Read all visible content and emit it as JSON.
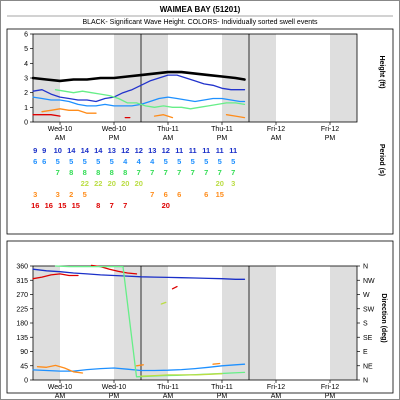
{
  "title": "WAIMEA BAY (51201)",
  "subtitle": "BLACK- Significant Wave Height.  COLORS- Individually sorted swell events",
  "chart_data": [
    {
      "type": "line",
      "ylabel": "Height (ft)",
      "ylim": [
        0,
        6
      ],
      "yticks": [
        "0",
        "1",
        "2",
        "3",
        "4",
        "5",
        "6"
      ],
      "x_groups": [
        {
          "day": "Wed-10",
          "half": "AM"
        },
        {
          "day": "Wed-10",
          "half": "PM"
        },
        {
          "day": "Thu-11",
          "half": "AM"
        },
        {
          "day": "Thu-11",
          "half": "PM"
        },
        {
          "day": "Fri-12",
          "half": "AM"
        },
        {
          "day": "Fri-12",
          "half": "PM"
        }
      ],
      "x_unit": "hours since Wed-10 00:00",
      "xlim": [
        0,
        72
      ],
      "series": [
        {
          "color": "#000000",
          "x": [
            0,
            3,
            6,
            9,
            12,
            15,
            18,
            21,
            24,
            27,
            30,
            33,
            36,
            39,
            42,
            45,
            47
          ],
          "y": [
            3.0,
            2.9,
            2.8,
            2.9,
            2.9,
            3.0,
            3.0,
            3.1,
            3.2,
            3.3,
            3.4,
            3.4,
            3.3,
            3.2,
            3.1,
            3.0,
            2.9
          ]
        },
        {
          "color": "#2233cc",
          "x": [
            0,
            2,
            4,
            6,
            8,
            10,
            12,
            14,
            16,
            18,
            20,
            22,
            24,
            26,
            28,
            30,
            32,
            34,
            36,
            38,
            40,
            42,
            44,
            46,
            47
          ],
          "y": [
            2.1,
            2.2,
            1.9,
            1.7,
            1.6,
            1.5,
            1.5,
            1.4,
            1.6,
            1.7,
            2.0,
            2.2,
            2.5,
            2.8,
            3.0,
            3.2,
            3.2,
            3.0,
            2.8,
            2.6,
            2.5,
            2.3,
            2.2,
            2.2,
            2.2
          ]
        },
        {
          "color": "#1e90ff",
          "x": [
            0,
            2,
            4,
            6,
            8,
            10,
            12,
            14,
            16,
            18,
            20,
            22,
            24,
            26,
            28,
            30,
            32,
            34,
            36,
            38,
            40,
            42,
            44,
            46,
            47
          ],
          "y": [
            1.7,
            1.6,
            1.5,
            1.5,
            1.4,
            1.2,
            1.1,
            1.1,
            1.2,
            1.1,
            1.1,
            1.1,
            1.2,
            1.4,
            1.6,
            1.7,
            1.6,
            1.5,
            1.4,
            1.5,
            1.6,
            1.6,
            1.5,
            1.4,
            1.4
          ]
        },
        {
          "color": "#66ee88",
          "x": [
            5,
            7,
            9,
            11,
            13,
            15,
            17,
            19,
            21,
            23,
            25,
            27,
            29,
            31,
            33,
            35,
            37,
            39,
            41,
            43,
            45,
            47
          ],
          "y": [
            2.2,
            2.1,
            2.0,
            2.1,
            2.0,
            1.9,
            1.8,
            1.6,
            1.3,
            1.3,
            1.1,
            1.0,
            1.1,
            1.0,
            1.0,
            0.9,
            1.0,
            1.1,
            1.2,
            1.3,
            1.3,
            1.2
          ]
        },
        {
          "color": "#ff8c1a",
          "x": [
            2,
            4,
            6,
            8,
            10,
            12,
            14
          ],
          "y": [
            0.7,
            0.8,
            0.9,
            0.8,
            0.8,
            0.6,
            0.6
          ]
        },
        {
          "color": "#ff8c1a",
          "x": [
            27,
            29,
            31
          ],
          "y": [
            0.4,
            0.5,
            0.3
          ]
        },
        {
          "color": "#ff8c1a",
          "x": [
            43,
            45,
            47
          ],
          "y": [
            0.5,
            0.4,
            0.3
          ]
        },
        {
          "color": "#dd0000",
          "x": [
            0,
            2,
            4,
            6
          ],
          "y": [
            0.5,
            0.5,
            0.5,
            0.4
          ]
        },
        {
          "color": "#dd0000",
          "x": [
            20.5,
            21.5
          ],
          "y": [
            0.3,
            0.3
          ]
        }
      ],
      "period_label": "Period (s)",
      "period_rows": [
        {
          "color": "#1a2fc8",
          "cells": [
            [
              "0.5",
              "9"
            ],
            [
              "2.5",
              "9"
            ],
            [
              "5.5",
              "10"
            ],
            [
              "8.5",
              "14"
            ],
            [
              "11.5",
              "14"
            ],
            [
              "14.5",
              "14"
            ],
            [
              "17.5",
              "13"
            ],
            [
              "20.5",
              "12"
            ],
            [
              "23.5",
              "12"
            ],
            [
              "26.5",
              "13"
            ],
            [
              "29.5",
              "12"
            ],
            [
              "32.5",
              "11"
            ],
            [
              "35.5",
              "11"
            ],
            [
              "38.5",
              "11"
            ],
            [
              "41.5",
              "11"
            ],
            [
              "44.5",
              "11"
            ]
          ]
        },
        {
          "color": "#1e90ff",
          "cells": [
            [
              "0.5",
              "6"
            ],
            [
              "2.5",
              "6"
            ],
            [
              "5.5",
              "5"
            ],
            [
              "8.5",
              "5"
            ],
            [
              "11.5",
              "5"
            ],
            [
              "14.5",
              "5"
            ],
            [
              "17.5",
              "5"
            ],
            [
              "20.5",
              "4"
            ],
            [
              "23.5",
              "4"
            ],
            [
              "26.5",
              "4"
            ],
            [
              "29.5",
              "5"
            ],
            [
              "32.5",
              "5"
            ],
            [
              "35.5",
              "5"
            ],
            [
              "38.5",
              "5"
            ],
            [
              "41.5",
              "5"
            ],
            [
              "44.5",
              "5"
            ]
          ]
        },
        {
          "color": "#33dd55",
          "cells": [
            [
              "5.5",
              "7"
            ],
            [
              "8.5",
              "8"
            ],
            [
              "11.5",
              "8"
            ],
            [
              "14.5",
              "8"
            ],
            [
              "17.5",
              "8"
            ],
            [
              "20.5",
              "8"
            ],
            [
              "23.5",
              "7"
            ],
            [
              "26.5",
              "7"
            ],
            [
              "29.5",
              "7"
            ],
            [
              "32.5",
              "7"
            ],
            [
              "35.5",
              "7"
            ],
            [
              "38.5",
              "7"
            ],
            [
              "41.5",
              "7"
            ],
            [
              "44.5",
              "7"
            ]
          ]
        },
        {
          "color": "#bbdd44",
          "cells": [
            [
              "11.5",
              "22"
            ],
            [
              "14.5",
              "22"
            ],
            [
              "17.5",
              "20"
            ],
            [
              "20.5",
              "20"
            ],
            [
              "23.5",
              "20"
            ],
            [
              "41.5",
              "20"
            ],
            [
              "44.5",
              "3"
            ]
          ]
        },
        {
          "color": "#ff8c1a",
          "cells": [
            [
              "0.5",
              "3"
            ],
            [
              "5.5",
              "3"
            ],
            [
              "8.5",
              "2"
            ],
            [
              "11.5",
              "5"
            ],
            [
              "26.5",
              "7"
            ],
            [
              "29.5",
              "6"
            ],
            [
              "32.5",
              "6"
            ],
            [
              "38.5",
              "6"
            ],
            [
              "41.5",
              "15"
            ]
          ]
        },
        {
          "color": "#dd0000",
          "cells": [
            [
              "0.5",
              "16"
            ],
            [
              "3.5",
              "16"
            ],
            [
              "6.5",
              "15"
            ],
            [
              "9.5",
              "15"
            ],
            [
              "14.5",
              "8"
            ],
            [
              "17.5",
              "7"
            ],
            [
              "20.5",
              "7"
            ],
            [
              "29.5",
              "20"
            ]
          ]
        }
      ]
    },
    {
      "type": "scatter",
      "ylabel": "Direction (deg)",
      "ylim": [
        0,
        360
      ],
      "yticks": [
        "0",
        "45",
        "90",
        "135",
        "180",
        "225",
        "270",
        "315",
        "360"
      ],
      "compass": [
        "N",
        "NE",
        "E",
        "SE",
        "S",
        "SW",
        "W",
        "NW",
        "N"
      ],
      "xlim": [
        0,
        72
      ],
      "series": [
        {
          "color": "#1a2fc8",
          "x": [
            0,
            3,
            6,
            9,
            12,
            15,
            18,
            21,
            24,
            27,
            30,
            33,
            36,
            39,
            42,
            45,
            47
          ],
          "y": [
            350,
            345,
            342,
            338,
            335,
            332,
            330,
            328,
            326,
            325,
            324,
            323,
            322,
            321,
            320,
            318,
            318
          ]
        },
        {
          "color": "#dd0000",
          "x": [
            0,
            2,
            4,
            6,
            8,
            10
          ],
          "y": [
            320,
            325,
            332,
            335,
            330,
            330
          ]
        },
        {
          "color": "#dd0000",
          "x": [
            13,
            15,
            17,
            19,
            21,
            23
          ],
          "y": [
            362,
            358,
            350,
            343,
            338,
            335
          ]
        },
        {
          "color": "#dd0000",
          "x": [
            31,
            32
          ],
          "y": [
            288,
            295
          ]
        },
        {
          "color": "#1e90ff",
          "x": [
            0,
            3,
            6,
            9,
            12,
            15,
            18,
            21,
            24,
            27,
            30,
            33,
            36,
            39,
            42,
            45,
            47
          ],
          "y": [
            32,
            30,
            28,
            28,
            33,
            36,
            38,
            34,
            30,
            30,
            31,
            33,
            36,
            40,
            45,
            48,
            50
          ]
        },
        {
          "color": "#66ee88",
          "x": [
            5,
            8,
            11,
            14,
            17,
            20,
            23,
            26,
            29,
            32,
            35,
            38,
            41,
            44,
            47
          ],
          "y": [
            360,
            358,
            358,
            358,
            358,
            358,
            10,
            12,
            14,
            15,
            16,
            18,
            20,
            22,
            24
          ]
        },
        {
          "color": "#ff8c1a",
          "x": [
            1,
            3,
            5,
            7,
            9,
            11
          ],
          "y": [
            42,
            40,
            46,
            38,
            26,
            22
          ]
        },
        {
          "color": "#ff8c1a",
          "x": [
            23,
            24.5
          ],
          "y": [
            45,
            48
          ]
        },
        {
          "color": "#ff8c1a",
          "x": [
            40,
            41.5
          ],
          "y": [
            50,
            52
          ]
        },
        {
          "color": "#bbdd44",
          "x": [
            24,
            27,
            30,
            33,
            36,
            39,
            42
          ],
          "y": [
            12,
            14,
            16,
            16,
            16,
            18,
            20
          ]
        },
        {
          "color": "#bbdd44",
          "x": [
            28.5,
            29.5
          ],
          "y": [
            240,
            245
          ]
        }
      ]
    }
  ]
}
